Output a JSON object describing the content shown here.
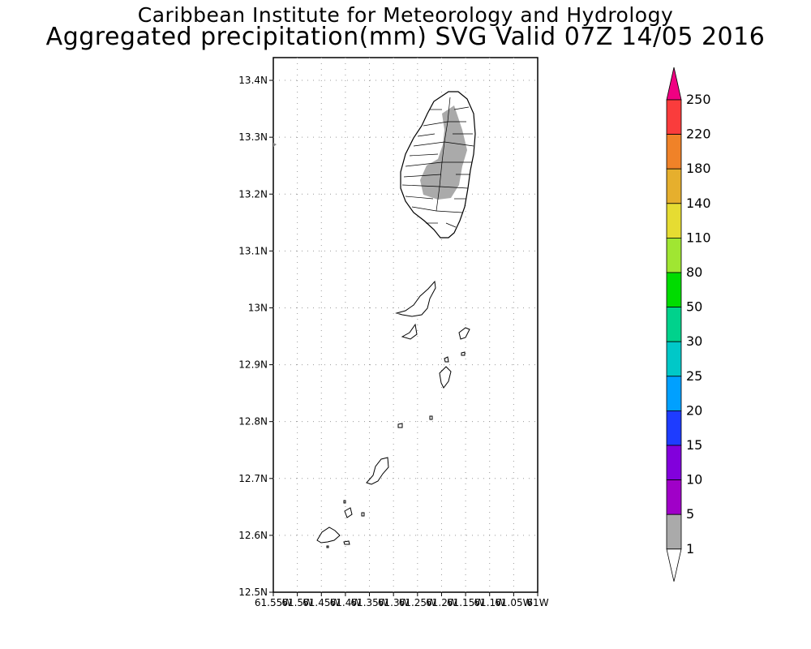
{
  "title": "Caribbean Institute for Meteorology and Hydrology",
  "subtitle": "Aggregated precipitation(mm) SVG Valid 07Z 14/05 2016",
  "map": {
    "lat_labels": [
      "13.4N",
      "13.3N",
      "13.2N",
      "13.1N",
      "13N",
      "12.9N",
      "12.8N",
      "12.7N",
      "12.6N",
      "12.5N"
    ],
    "lon_labels": [
      "61.55W",
      "61.5W",
      "61.45W",
      "61.4W",
      "61.35W",
      "61.3W",
      "61.25W",
      "61.2W",
      "61.15W",
      "61.1W",
      "61.05W",
      "61W"
    ],
    "lat_range": [
      12.5,
      13.44
    ],
    "lon_range": [
      -61.55,
      -61.0
    ],
    "grid": true
  },
  "legend": {
    "labels": [
      "1",
      "5",
      "10",
      "15",
      "20",
      "25",
      "30",
      "50",
      "80",
      "110",
      "140",
      "180",
      "220",
      "250"
    ],
    "colors": [
      "#aaaaaa",
      "#a000c8",
      "#8200dc",
      "#1e3cff",
      "#00a0ff",
      "#00c8c8",
      "#00d28c",
      "#00dc00",
      "#a0e632",
      "#e6dc32",
      "#e6af2d",
      "#f08228",
      "#fa3c3c",
      "#f00082"
    ]
  }
}
